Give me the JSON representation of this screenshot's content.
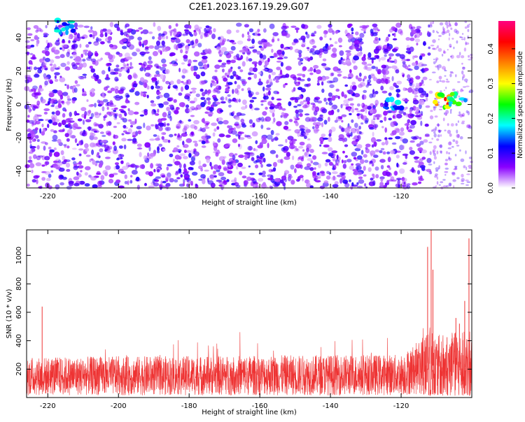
{
  "figure": {
    "title": "C2E1.2023.167.19.29.G07"
  },
  "chart_data": [
    {
      "type": "heatmap",
      "xlabel": "Height of straight line (km)",
      "ylabel": "Frequency (Hz)",
      "xlim": [
        -226,
        -100
      ],
      "ylim": [
        -50,
        50
      ],
      "x_ticks": [
        -220,
        -200,
        -180,
        -160,
        -140,
        -120
      ],
      "y_ticks": [
        -40,
        -20,
        0,
        20,
        40
      ],
      "colorbar": {
        "label": "Normalized spectral amplitude",
        "range": [
          0.0,
          0.48
        ],
        "ticks": [
          0.0,
          0.1,
          0.2,
          0.3,
          0.4
        ],
        "colors": [
          "#ffffff",
          "#8a00ff",
          "#0000ff",
          "#00ffff",
          "#00ff00",
          "#ffff00",
          "#ff8000",
          "#ff0000",
          "#ff0080"
        ]
      },
      "grid": false,
      "features": [
        {
          "x_range": [
            -226,
            -112
          ],
          "y_range": [
            -50,
            48
          ],
          "level": 0.08,
          "note": "dense speckle"
        },
        {
          "x": -108,
          "y": 2,
          "level": 0.45
        },
        {
          "x": -104,
          "y": 3,
          "level": 0.3
        },
        {
          "x": -122,
          "y": 0,
          "level": 0.2
        },
        {
          "x": -215,
          "y": 47,
          "level": 0.2
        }
      ]
    },
    {
      "type": "line",
      "xlabel": "Height of straight line (km)",
      "ylabel": "SNR (10 * v/v)",
      "xlim": [
        -226,
        -100
      ],
      "ylim": [
        0,
        1180
      ],
      "x_ticks": [
        -220,
        -200,
        -180,
        -160,
        -140,
        -120
      ],
      "y_ticks": [
        200,
        400,
        600,
        800,
        1000
      ],
      "color": "#ee3333",
      "baseline": [
        [
          -226,
          150
        ],
        [
          -120,
          160
        ],
        [
          -114,
          220
        ],
        [
          -112,
          250
        ],
        [
          -110,
          200
        ],
        [
          -100,
          220
        ]
      ],
      "spikes": [
        {
          "x": -221.6,
          "y": 640
        },
        {
          "x": -112.5,
          "y": 1060
        },
        {
          "x": -111.5,
          "y": 1180
        },
        {
          "x": -111.0,
          "y": 900
        },
        {
          "x": -104.5,
          "y": 560
        },
        {
          "x": -102.0,
          "y": 680
        },
        {
          "x": -100.8,
          "y": 1120
        },
        {
          "x": -103.5,
          "y": 520
        }
      ]
    }
  ]
}
